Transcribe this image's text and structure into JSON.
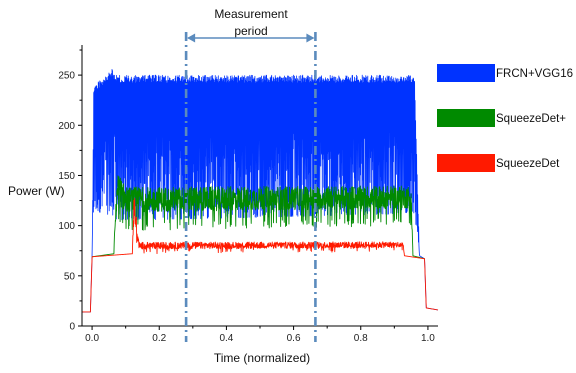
{
  "chart_data": {
    "type": "line",
    "title": "",
    "xlabel": "Time (normalized)",
    "ylabel": "Power (W)",
    "xlim": [
      -0.03,
      1.03
    ],
    "ylim": [
      0,
      280
    ],
    "x_ticks": [
      0.0,
      0.2,
      0.4,
      0.6,
      0.8,
      1.0
    ],
    "x_tick_labels": [
      "0.0",
      "0.2",
      "0.4",
      "0.6",
      "0.8",
      "1.0"
    ],
    "y_ticks": [
      0,
      50,
      100,
      150,
      200,
      250
    ],
    "y_tick_labels": [
      "0",
      "50",
      "100",
      "150",
      "200",
      "250"
    ],
    "grid": false,
    "legend_position": "right",
    "annotation": {
      "label_line1": "Measurement",
      "label_line2": "period",
      "x_start": 0.28,
      "x_end": 0.665
    },
    "series": [
      {
        "name": "FRCN+VGG16",
        "color": "#0033ff",
        "profile": [
          {
            "x": -0.03,
            "low": 14,
            "high": 14
          },
          {
            "x": -0.005,
            "low": 14,
            "high": 14
          },
          {
            "x": 0.0,
            "low": 69,
            "high": 69
          },
          {
            "x": 0.005,
            "low": 115,
            "high": 240
          },
          {
            "x": 0.06,
            "low": 110,
            "high": 256
          },
          {
            "x": 0.07,
            "low": 105,
            "high": 250
          },
          {
            "x": 0.96,
            "low": 112,
            "high": 250
          },
          {
            "x": 0.975,
            "low": 70,
            "high": 70
          },
          {
            "x": 0.99,
            "low": 67,
            "high": 67
          },
          {
            "x": 0.995,
            "low": 18,
            "high": 18
          },
          {
            "x": 1.03,
            "low": 16,
            "high": 16
          }
        ]
      },
      {
        "name": "SqueezeDet+",
        "color": "#008a00",
        "profile": [
          {
            "x": 0.0,
            "low": 69,
            "high": 69
          },
          {
            "x": 0.065,
            "low": 72,
            "high": 72
          },
          {
            "x": 0.075,
            "low": 100,
            "high": 165
          },
          {
            "x": 0.1,
            "low": 95,
            "high": 145
          },
          {
            "x": 0.95,
            "low": 100,
            "high": 145
          },
          {
            "x": 0.955,
            "low": 70,
            "high": 70
          },
          {
            "x": 0.99,
            "low": 67,
            "high": 67
          }
        ]
      },
      {
        "name": "SqueezeDet",
        "color": "#ff1a00",
        "profile": [
          {
            "x": -0.03,
            "low": 14,
            "high": 14
          },
          {
            "x": -0.005,
            "low": 14,
            "high": 14
          },
          {
            "x": 0.0,
            "low": 69,
            "high": 69
          },
          {
            "x": 0.12,
            "low": 72,
            "high": 72
          },
          {
            "x": 0.125,
            "low": 90,
            "high": 150
          },
          {
            "x": 0.135,
            "low": 80,
            "high": 105
          },
          {
            "x": 0.14,
            "low": 72,
            "high": 86
          },
          {
            "x": 0.925,
            "low": 74,
            "high": 86
          },
          {
            "x": 0.93,
            "low": 70,
            "high": 70
          },
          {
            "x": 0.99,
            "low": 67,
            "high": 67
          },
          {
            "x": 0.995,
            "low": 18,
            "high": 18
          },
          {
            "x": 1.03,
            "low": 16,
            "high": 16
          }
        ]
      }
    ]
  }
}
